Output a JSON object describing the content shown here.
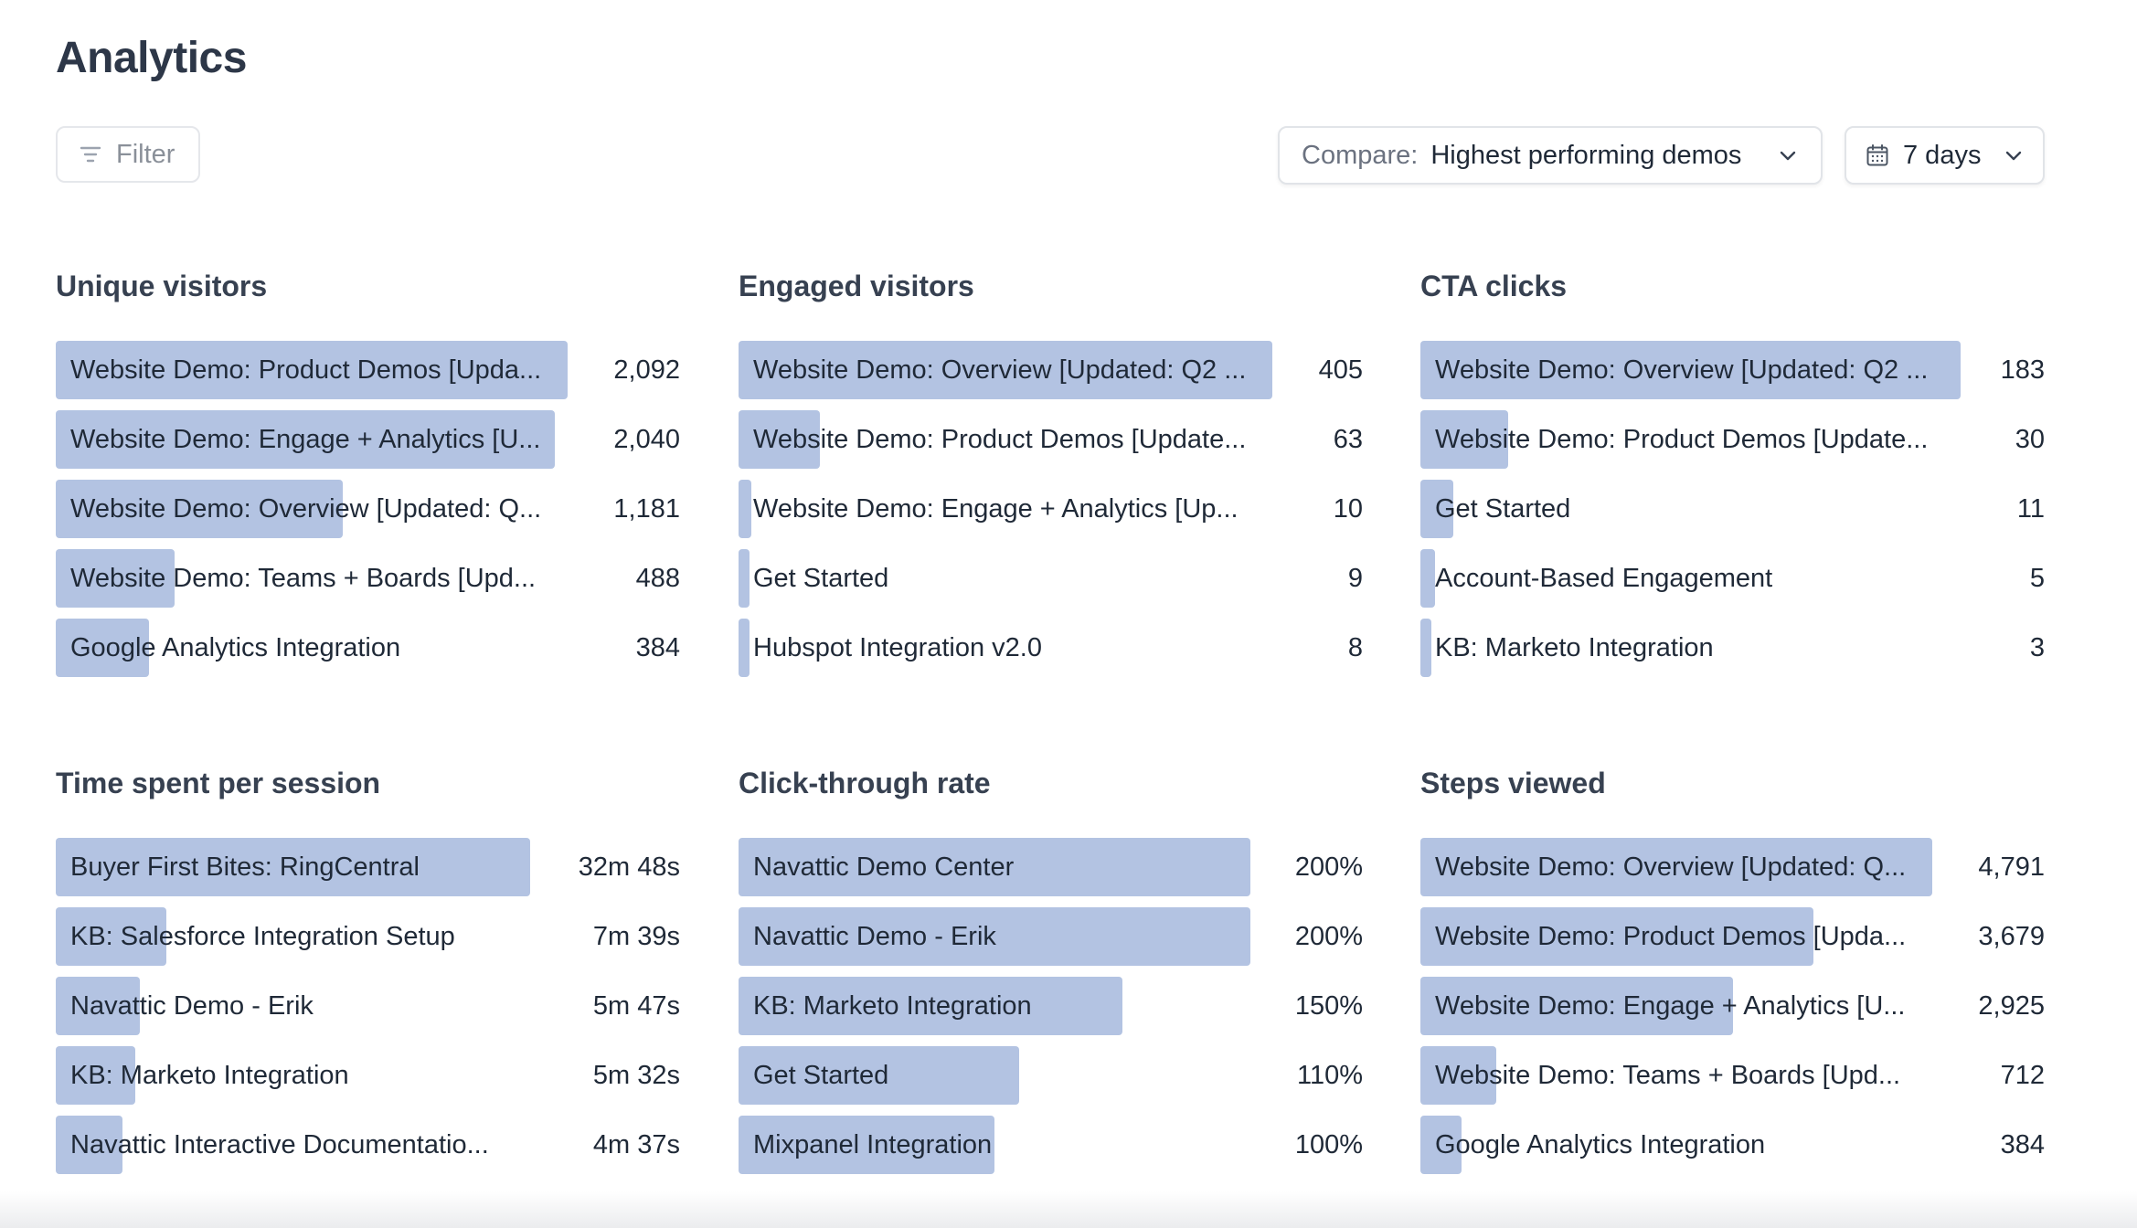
{
  "page": {
    "title": "Analytics"
  },
  "toolbar": {
    "filter_label": "Filter",
    "compare_prefix": "Compare:",
    "compare_value": "Highest performing demos",
    "days_value": "7 days"
  },
  "colors": {
    "bar": "#b3c3e2",
    "text": "#1f2937"
  },
  "panels": [
    {
      "title": "Unique visitors",
      "rows": [
        {
          "label": "Website Demo: Product Demos [Upda...",
          "value": "2,092",
          "fraction": 0.82
        },
        {
          "label": "Website Demo: Engage + Analytics [U...",
          "value": "2,040",
          "fraction": 0.8
        },
        {
          "label": "Website Demo: Overview [Updated: Q...",
          "value": "1,181",
          "fraction": 0.46
        },
        {
          "label": "Website Demo: Teams + Boards [Upd...",
          "value": "488",
          "fraction": 0.19
        },
        {
          "label": "Google Analytics Integration",
          "value": "384",
          "fraction": 0.15
        }
      ]
    },
    {
      "title": "Engaged visitors",
      "rows": [
        {
          "label": "Website Demo: Overview [Updated: Q2 ...",
          "value": "405",
          "fraction": 0.855
        },
        {
          "label": "Website Demo: Product Demos [Update...",
          "value": "63",
          "fraction": 0.13
        },
        {
          "label": "Website Demo: Engage + Analytics [Up...",
          "value": "10",
          "fraction": 0.02
        },
        {
          "label": "Get Started",
          "value": "9",
          "fraction": 0.018
        },
        {
          "label": "Hubspot Integration v2.0",
          "value": "8",
          "fraction": 0.016
        }
      ]
    },
    {
      "title": "CTA clicks",
      "rows": [
        {
          "label": "Website Demo: Overview [Updated: Q2 ...",
          "value": "183",
          "fraction": 0.865
        },
        {
          "label": "Website Demo: Product Demos [Update...",
          "value": "30",
          "fraction": 0.14
        },
        {
          "label": "Get Started",
          "value": "11",
          "fraction": 0.052
        },
        {
          "label": "Account-Based Engagement",
          "value": "5",
          "fraction": 0.024
        },
        {
          "label": "KB: Marketo Integration",
          "value": "3",
          "fraction": 0.014
        }
      ]
    },
    {
      "title": "Time spent per session",
      "rows": [
        {
          "label": "Buyer First Bites: RingCentral",
          "value": "32m 48s",
          "fraction": 0.76
        },
        {
          "label": "KB: Salesforce Integration Setup",
          "value": "7m 39s",
          "fraction": 0.177
        },
        {
          "label": "Navattic Demo - Erik",
          "value": "5m 47s",
          "fraction": 0.134
        },
        {
          "label": "KB: Marketo Integration",
          "value": "5m 32s",
          "fraction": 0.128
        },
        {
          "label": "Navattic Interactive Documentatio...",
          "value": "4m 37s",
          "fraction": 0.107
        }
      ]
    },
    {
      "title": "Click-through rate",
      "rows": [
        {
          "label": "Navattic Demo Center",
          "value": "200%",
          "fraction": 0.82
        },
        {
          "label": "Navattic Demo - Erik",
          "value": "200%",
          "fraction": 0.82
        },
        {
          "label": "KB: Marketo Integration",
          "value": "150%",
          "fraction": 0.615
        },
        {
          "label": "Get Started",
          "value": "110%",
          "fraction": 0.45
        },
        {
          "label": "Mixpanel Integration",
          "value": "100%",
          "fraction": 0.41
        }
      ]
    },
    {
      "title": "Steps viewed",
      "rows": [
        {
          "label": "Website Demo: Overview [Updated: Q...",
          "value": "4,791",
          "fraction": 0.82
        },
        {
          "label": "Website Demo: Product Demos [Upda...",
          "value": "3,679",
          "fraction": 0.63
        },
        {
          "label": "Website Demo: Engage + Analytics [U...",
          "value": "2,925",
          "fraction": 0.5
        },
        {
          "label": "Website Demo: Teams + Boards [Upd...",
          "value": "712",
          "fraction": 0.122
        },
        {
          "label": "Google Analytics Integration",
          "value": "384",
          "fraction": 0.066
        }
      ]
    }
  ],
  "icons": {
    "filter": "filter-icon",
    "compare_chevron": "chevron-down-icon",
    "calendar": "calendar-icon",
    "days_chevron": "chevron-down-icon"
  }
}
